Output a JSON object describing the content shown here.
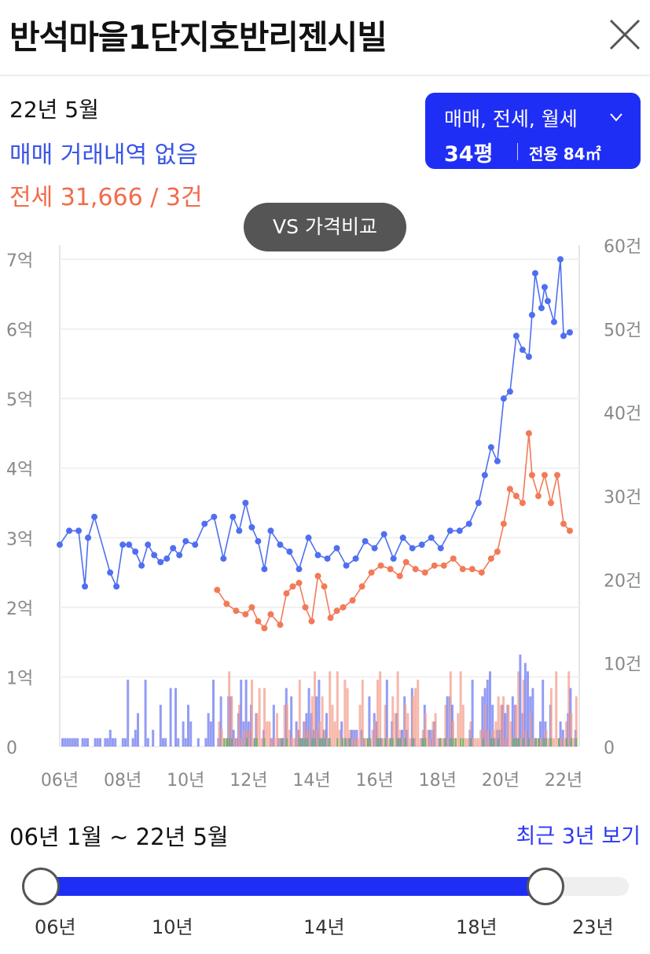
{
  "header": {
    "title": "반석마을1단지호반리젠시빌"
  },
  "summary": {
    "date": "22년 5월",
    "sale": "매매 거래내역 없음",
    "jeonse": "전세 31,666 / 3건"
  },
  "filter": {
    "types": "매매, 전세, 월세",
    "size": "34평",
    "area": "전용 84㎡"
  },
  "compare_button": "VS 가격비교",
  "range": {
    "label": "06년 1월 ~ 22년 5월",
    "recent_link": "최근 3년 보기"
  },
  "slider": {
    "ticks": [
      "06년",
      "10년",
      "14년",
      "18년",
      "23년"
    ],
    "start": "06년",
    "end": "22년 5월"
  },
  "colors": {
    "sale": "#4f6ff0",
    "jeonse": "#f27a57",
    "volume_sale": "#6f7bf0",
    "volume_jeonse": "#f4a08f",
    "volume_rent": "#62b45c",
    "accent": "#1f2ef5"
  },
  "chart_data": {
    "type": "line",
    "x_ticks": [
      "06년",
      "08년",
      "10년",
      "12년",
      "14년",
      "16년",
      "18년",
      "20년",
      "22년"
    ],
    "y_left_ticks": [
      "0",
      "1억",
      "2억",
      "3억",
      "4억",
      "5억",
      "6억",
      "7억"
    ],
    "y_right_ticks": [
      "0",
      "10건",
      "20건",
      "30건",
      "40건",
      "50건",
      "60건"
    ],
    "ylim_left": [
      0,
      7
    ],
    "ylim_right": [
      0,
      60
    ],
    "series": [
      {
        "name": "매매",
        "x": [
          2006.0,
          2006.3,
          2006.6,
          2006.8,
          2006.9,
          2007.1,
          2007.6,
          2007.8,
          2008.0,
          2008.2,
          2008.4,
          2008.6,
          2008.8,
          2009.0,
          2009.2,
          2009.4,
          2009.6,
          2009.8,
          2010.0,
          2010.3,
          2010.6,
          2010.9,
          2011.2,
          2011.5,
          2011.7,
          2011.9,
          2012.1,
          2012.3,
          2012.5,
          2012.7,
          2013.0,
          2013.3,
          2013.6,
          2013.9,
          2014.2,
          2014.5,
          2014.8,
          2015.1,
          2015.4,
          2015.7,
          2016.0,
          2016.3,
          2016.6,
          2016.9,
          2017.2,
          2017.5,
          2017.8,
          2018.1,
          2018.4,
          2018.7,
          2019.0,
          2019.3,
          2019.5,
          2019.7,
          2019.9,
          2020.1,
          2020.3,
          2020.5,
          2020.7,
          2020.9,
          2021.0,
          2021.1,
          2021.3,
          2021.4,
          2021.5,
          2021.7,
          2021.9,
          2022.0,
          2022.2
        ],
        "values": [
          2.9,
          3.1,
          3.1,
          2.3,
          3.0,
          3.3,
          2.5,
          2.3,
          2.9,
          2.9,
          2.8,
          2.6,
          2.9,
          2.75,
          2.65,
          2.7,
          2.85,
          2.75,
          2.95,
          2.9,
          3.2,
          3.3,
          2.7,
          3.3,
          3.1,
          3.5,
          3.15,
          2.95,
          2.55,
          3.1,
          2.9,
          2.8,
          2.55,
          3.0,
          2.75,
          2.7,
          2.85,
          2.6,
          2.7,
          2.95,
          2.85,
          3.05,
          2.7,
          3.0,
          2.85,
          2.9,
          3.0,
          2.85,
          3.1,
          3.1,
          3.2,
          3.5,
          3.9,
          4.3,
          4.1,
          5.0,
          5.1,
          5.9,
          5.7,
          5.6,
          6.2,
          6.8,
          6.3,
          6.6,
          6.4,
          6.1,
          7.0,
          5.9,
          5.95
        ]
      },
      {
        "name": "전세",
        "x": [
          2011.0,
          2011.3,
          2011.6,
          2011.9,
          2012.1,
          2012.3,
          2012.5,
          2012.7,
          2013.0,
          2013.2,
          2013.4,
          2013.6,
          2013.8,
          2014.0,
          2014.2,
          2014.4,
          2014.6,
          2014.8,
          2015.0,
          2015.3,
          2015.6,
          2015.9,
          2016.2,
          2016.5,
          2016.8,
          2017.0,
          2017.3,
          2017.6,
          2017.9,
          2018.2,
          2018.5,
          2018.8,
          2019.1,
          2019.4,
          2019.7,
          2019.9,
          2020.1,
          2020.3,
          2020.5,
          2020.7,
          2020.9,
          2021.0,
          2021.2,
          2021.4,
          2021.6,
          2021.8,
          2022.0,
          2022.2
        ],
        "values": [
          2.25,
          2.05,
          1.95,
          1.9,
          2.0,
          1.8,
          1.7,
          1.9,
          1.75,
          2.2,
          2.3,
          2.35,
          2.0,
          1.8,
          2.45,
          2.3,
          1.85,
          1.95,
          2.0,
          2.1,
          2.3,
          2.5,
          2.6,
          2.55,
          2.45,
          2.65,
          2.55,
          2.5,
          2.6,
          2.6,
          2.7,
          2.55,
          2.55,
          2.5,
          2.7,
          2.8,
          3.2,
          3.7,
          3.6,
          3.5,
          4.5,
          3.9,
          3.6,
          3.9,
          3.5,
          3.9,
          3.2,
          3.1
        ]
      }
    ],
    "volume_series": [
      {
        "name": "매매 거래량",
        "x_range": [
          2006,
          2022.4
        ]
      },
      {
        "name": "전세 거래량",
        "x_range": [
          2011,
          2022.4
        ]
      },
      {
        "name": "월세 거래량",
        "x_range": [
          2011,
          2022.4
        ]
      }
    ],
    "grid": true
  }
}
